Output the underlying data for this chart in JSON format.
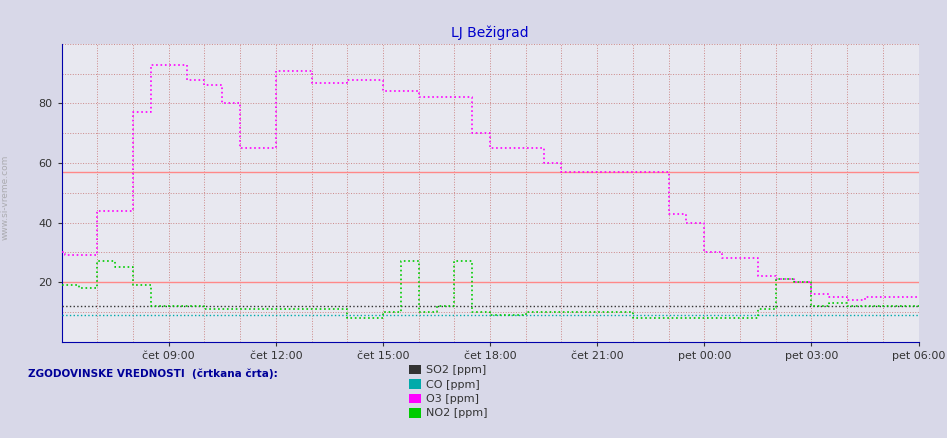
{
  "title": "LJ Bežigrad",
  "title_color": "#0000cc",
  "title_fontsize": 10,
  "bg_color": "#d8d8e8",
  "plot_bg_color": "#e8e8f0",
  "ylim": [
    0,
    100
  ],
  "yticks": [
    20,
    40,
    60,
    80
  ],
  "x_labels": [
    "čet 09:00",
    "čet 12:00",
    "čet 15:00",
    "čet 18:00",
    "čet 21:00",
    "pet 00:00",
    "pet 03:00",
    "pet 06:00"
  ],
  "x_tick_positions": [
    3,
    6,
    9,
    12,
    15,
    18,
    21,
    24
  ],
  "grid_color": "#cc8888",
  "ref_line_color": "#ff8888",
  "ref_line_y1": 20,
  "ref_line_y2": 57,
  "so2_color": "#333333",
  "co_color": "#00aaaa",
  "o3_color": "#ff00ff",
  "no2_color": "#00cc00",
  "legend_text": "ZGODOVINSKE VREDNOSTI  (črtkana črta):",
  "legend_items": [
    "SO2 [ppm]",
    "CO [ppm]",
    "O3 [ppm]",
    "NO2 [ppm]"
  ],
  "legend_colors": [
    "#333333",
    "#00aaaa",
    "#ff00ff",
    "#00cc00"
  ],
  "o3_data": [
    [
      0,
      30
    ],
    [
      0.083,
      30
    ],
    [
      0.083,
      29
    ],
    [
      0.5,
      29
    ],
    [
      0.5,
      29
    ],
    [
      1,
      29
    ],
    [
      1,
      44
    ],
    [
      1.5,
      44
    ],
    [
      1.5,
      44
    ],
    [
      2,
      44
    ],
    [
      2,
      77
    ],
    [
      2.5,
      77
    ],
    [
      2.5,
      93
    ],
    [
      3.5,
      93
    ],
    [
      3.5,
      88
    ],
    [
      4,
      88
    ],
    [
      4,
      86
    ],
    [
      4.5,
      86
    ],
    [
      4.5,
      80
    ],
    [
      5,
      80
    ],
    [
      5,
      65
    ],
    [
      5.5,
      65
    ],
    [
      5.5,
      65
    ],
    [
      6,
      65
    ],
    [
      6,
      91
    ],
    [
      6.5,
      91
    ],
    [
      6.5,
      91
    ],
    [
      7,
      91
    ],
    [
      7,
      87
    ],
    [
      7.5,
      87
    ],
    [
      7.5,
      87
    ],
    [
      8,
      87
    ],
    [
      8,
      88
    ],
    [
      8.5,
      88
    ],
    [
      8.5,
      88
    ],
    [
      9,
      88
    ],
    [
      9,
      84
    ],
    [
      9.5,
      84
    ],
    [
      9.5,
      84
    ],
    [
      10,
      84
    ],
    [
      10,
      82
    ],
    [
      10.5,
      82
    ],
    [
      10.5,
      82
    ],
    [
      11,
      82
    ],
    [
      11,
      82
    ],
    [
      11.5,
      82
    ],
    [
      11.5,
      70
    ],
    [
      12,
      70
    ],
    [
      12,
      65
    ],
    [
      12.5,
      65
    ],
    [
      12.5,
      65
    ],
    [
      13,
      65
    ],
    [
      13,
      65
    ],
    [
      13.5,
      65
    ],
    [
      13.5,
      60
    ],
    [
      14,
      60
    ],
    [
      14,
      57
    ],
    [
      15,
      57
    ],
    [
      15,
      57
    ],
    [
      16,
      57
    ],
    [
      16,
      57
    ],
    [
      17,
      57
    ],
    [
      17,
      43
    ],
    [
      17.5,
      43
    ],
    [
      17.5,
      40
    ],
    [
      18,
      40
    ],
    [
      18,
      30
    ],
    [
      18.5,
      30
    ],
    [
      18.5,
      28
    ],
    [
      19.5,
      28
    ],
    [
      19.5,
      22
    ],
    [
      20,
      22
    ],
    [
      20,
      21
    ],
    [
      20.5,
      21
    ],
    [
      20.5,
      20
    ],
    [
      21,
      20
    ],
    [
      21,
      16
    ],
    [
      21.5,
      16
    ],
    [
      21.5,
      15
    ],
    [
      22,
      15
    ],
    [
      22,
      14
    ],
    [
      22.5,
      14
    ],
    [
      22.5,
      15
    ],
    [
      23,
      15
    ],
    [
      23,
      15
    ],
    [
      24,
      15
    ]
  ],
  "no2_data": [
    [
      0,
      19
    ],
    [
      0.5,
      19
    ],
    [
      0.5,
      18
    ],
    [
      1,
      18
    ],
    [
      1,
      27
    ],
    [
      1.5,
      27
    ],
    [
      1.5,
      25
    ],
    [
      2,
      25
    ],
    [
      2,
      19
    ],
    [
      2.5,
      19
    ],
    [
      2.5,
      12
    ],
    [
      3,
      12
    ],
    [
      3,
      12
    ],
    [
      4,
      12
    ],
    [
      4,
      11
    ],
    [
      5,
      11
    ],
    [
      5,
      11
    ],
    [
      6,
      11
    ],
    [
      6,
      11
    ],
    [
      7,
      11
    ],
    [
      7,
      11
    ],
    [
      8,
      11
    ],
    [
      8,
      8
    ],
    [
      9,
      8
    ],
    [
      9,
      10
    ],
    [
      9.5,
      10
    ],
    [
      9.5,
      27
    ],
    [
      10,
      27
    ],
    [
      10,
      10
    ],
    [
      10.5,
      10
    ],
    [
      10.5,
      12
    ],
    [
      11,
      12
    ],
    [
      11,
      27
    ],
    [
      11.5,
      27
    ],
    [
      11.5,
      10
    ],
    [
      12,
      10
    ],
    [
      12,
      9
    ],
    [
      13,
      9
    ],
    [
      13,
      10
    ],
    [
      14,
      10
    ],
    [
      14,
      10
    ],
    [
      15,
      10
    ],
    [
      15,
      10
    ],
    [
      16,
      10
    ],
    [
      16,
      8
    ],
    [
      17,
      8
    ],
    [
      17,
      8
    ],
    [
      18,
      8
    ],
    [
      18,
      8
    ],
    [
      19.5,
      8
    ],
    [
      19.5,
      11
    ],
    [
      20,
      11
    ],
    [
      20,
      21
    ],
    [
      20.5,
      21
    ],
    [
      20.5,
      20
    ],
    [
      21,
      20
    ],
    [
      21,
      12
    ],
    [
      21.5,
      12
    ],
    [
      21.5,
      13
    ],
    [
      22,
      13
    ],
    [
      22,
      12
    ],
    [
      22.5,
      12
    ],
    [
      22.5,
      12
    ],
    [
      23,
      12
    ],
    [
      23,
      12
    ],
    [
      24,
      12
    ]
  ],
  "so2_data": [
    [
      0,
      12
    ],
    [
      24,
      12
    ]
  ],
  "co_data": [
    [
      0,
      9
    ],
    [
      24,
      9
    ]
  ]
}
